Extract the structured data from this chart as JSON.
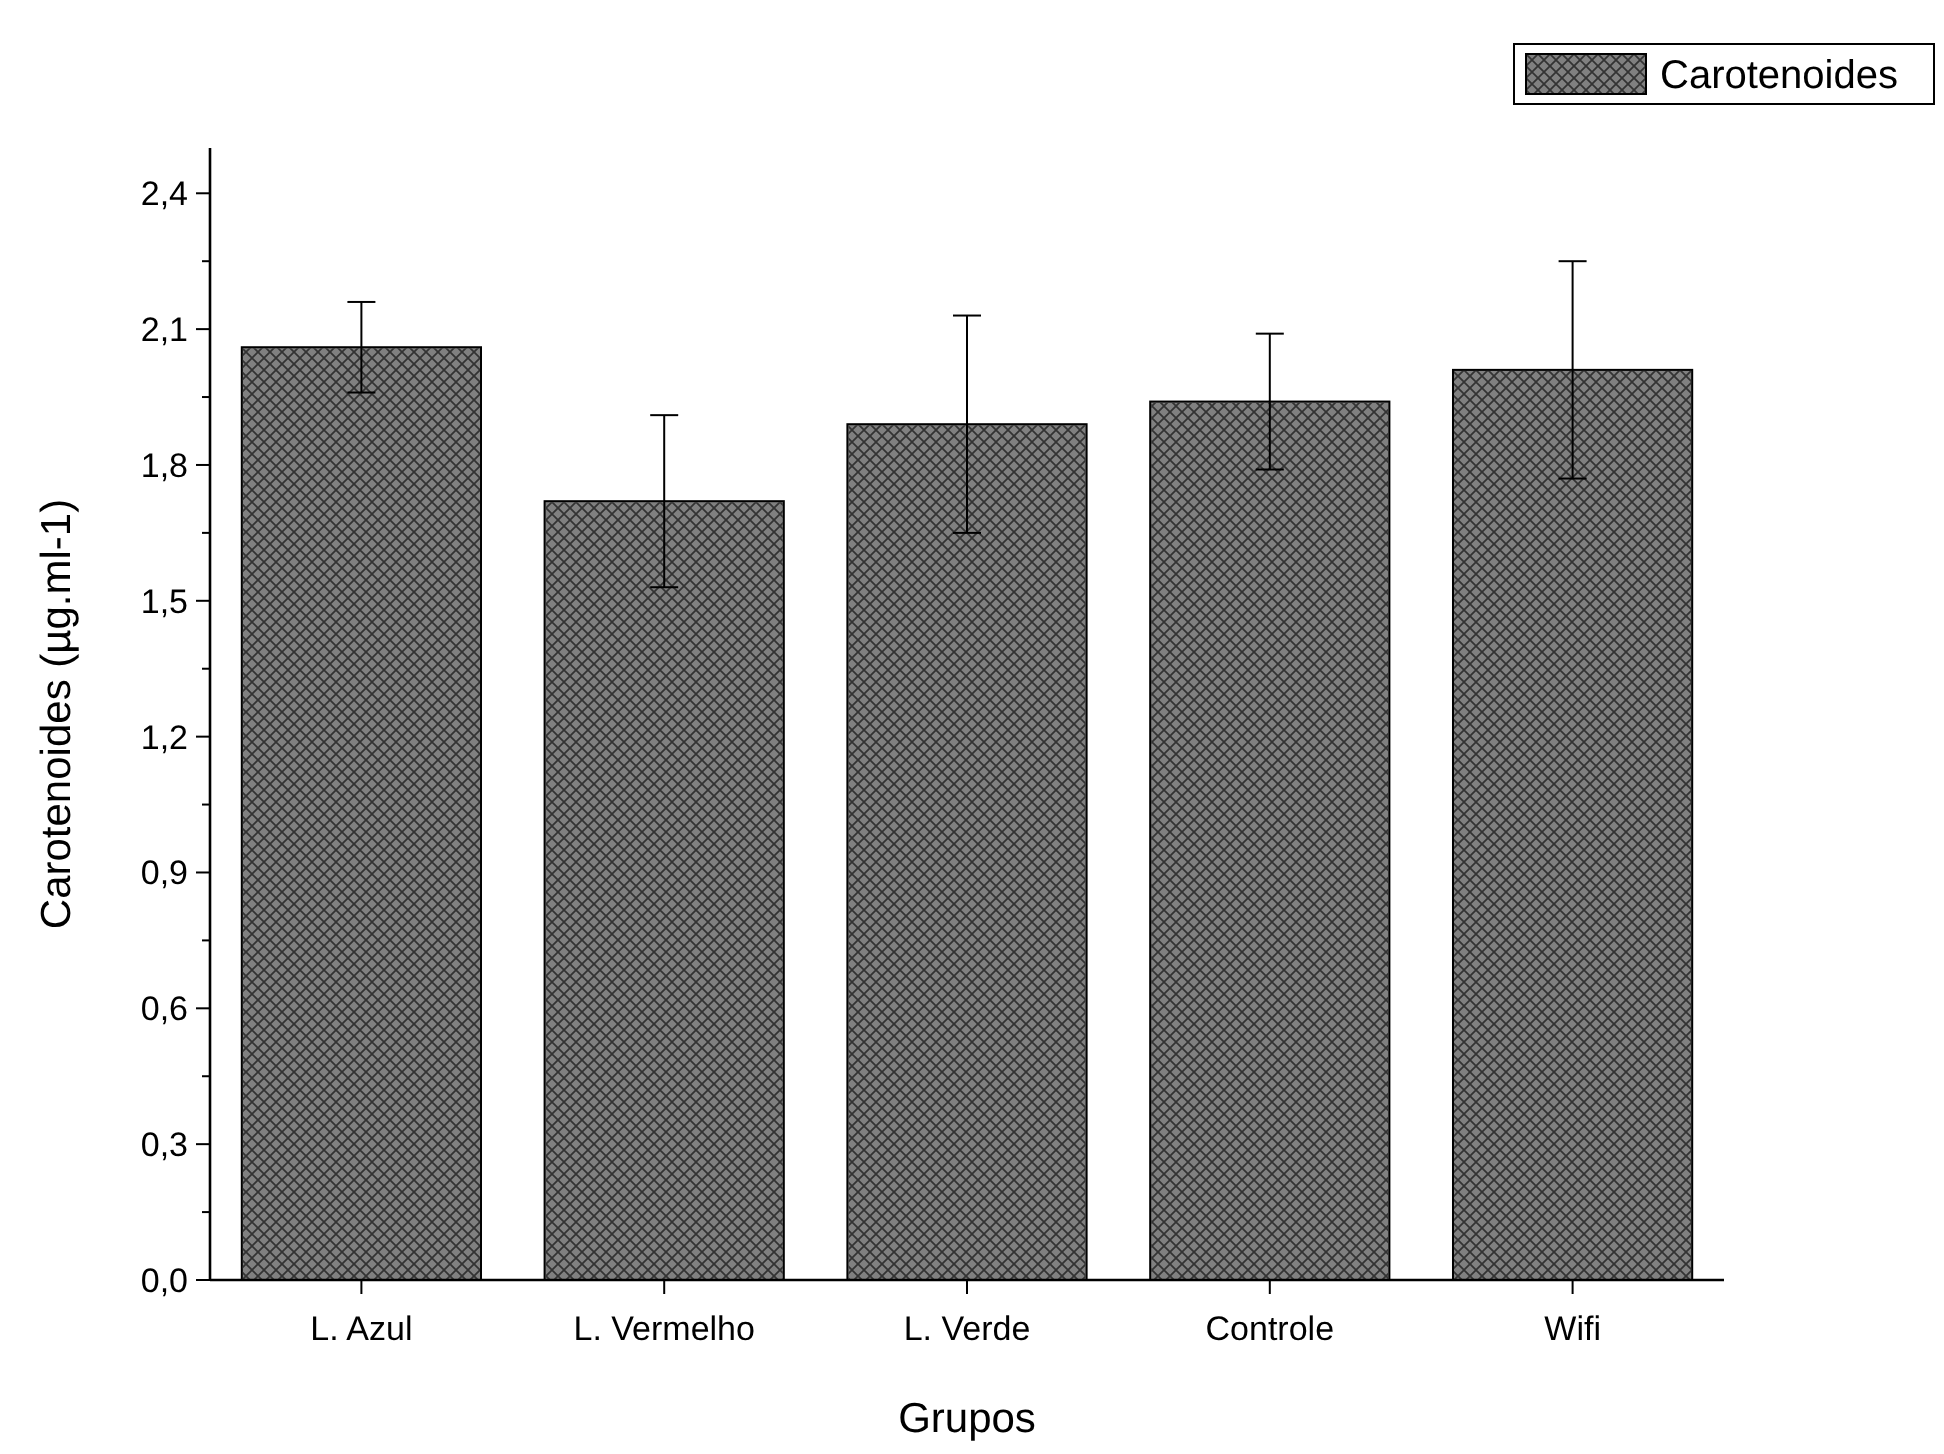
{
  "chart_data": {
    "type": "bar",
    "xlabel": "Grupos",
    "ylabel": "Carotenoides (µg.ml-1)",
    "categories": [
      "L. Azul",
      "L. Vermelho",
      "L. Verde",
      "Controle",
      "Wifi"
    ],
    "series": [
      {
        "name": "Carotenoides",
        "color": "#808080",
        "values": [
          2.06,
          1.72,
          1.89,
          1.94,
          2.01
        ],
        "errors": [
          0.1,
          0.19,
          0.24,
          0.15,
          0.24
        ]
      }
    ],
    "ylim": [
      0,
      2.5
    ],
    "yticks": [
      {
        "value": 0,
        "label": "0,0"
      },
      {
        "value": 0.3,
        "label": "0,3"
      },
      {
        "value": 0.6,
        "label": "0,6"
      },
      {
        "value": 0.9,
        "label": "0,9"
      },
      {
        "value": 1.2,
        "label": "1,2"
      },
      {
        "value": 1.5,
        "label": "1,5"
      },
      {
        "value": 1.8,
        "label": "1,8"
      },
      {
        "value": 2.1,
        "label": "2,1"
      },
      {
        "value": 2.4,
        "label": "2,4"
      }
    ],
    "grid": false,
    "legend": "top right"
  }
}
